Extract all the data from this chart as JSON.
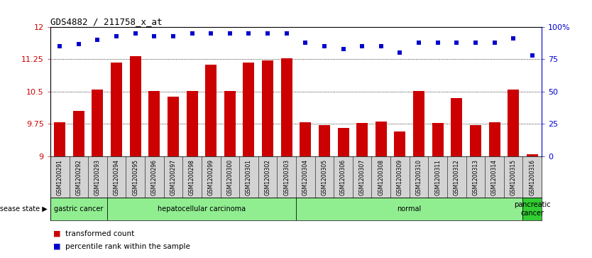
{
  "title": "GDS4882 / 211758_x_at",
  "samples": [
    "GSM1200291",
    "GSM1200292",
    "GSM1200293",
    "GSM1200294",
    "GSM1200295",
    "GSM1200296",
    "GSM1200297",
    "GSM1200298",
    "GSM1200299",
    "GSM1200300",
    "GSM1200301",
    "GSM1200302",
    "GSM1200303",
    "GSM1200304",
    "GSM1200305",
    "GSM1200306",
    "GSM1200307",
    "GSM1200308",
    "GSM1200309",
    "GSM1200310",
    "GSM1200311",
    "GSM1200312",
    "GSM1200313",
    "GSM1200314",
    "GSM1200315",
    "GSM1200316"
  ],
  "bar_values": [
    9.78,
    10.05,
    10.55,
    11.18,
    11.32,
    10.52,
    10.38,
    10.52,
    11.12,
    10.52,
    11.18,
    11.22,
    11.28,
    9.78,
    9.72,
    9.65,
    9.77,
    9.8,
    9.58,
    10.52,
    9.77,
    10.35,
    9.72,
    9.78,
    10.55,
    9.05
  ],
  "percentile_values": [
    85,
    87,
    90,
    93,
    95,
    93,
    93,
    95,
    95,
    95,
    95,
    95,
    95,
    88,
    85,
    83,
    85,
    85,
    80,
    88,
    88,
    88,
    88,
    88,
    91,
    78
  ],
  "ylim_left": [
    9,
    12
  ],
  "ylim_right": [
    0,
    100
  ],
  "yticks_left": [
    9,
    9.75,
    10.5,
    11.25,
    12
  ],
  "ytick_labels_left": [
    "9",
    "9.75",
    "10.5",
    "11.25",
    "12"
  ],
  "yticks_right": [
    0,
    25,
    50,
    75,
    100
  ],
  "ytick_labels_right": [
    "0",
    "25",
    "50",
    "75",
    "100%"
  ],
  "bar_color": "#cc0000",
  "dot_color": "#0000cc",
  "bg_color": "#ffffff",
  "plot_bg_color": "#ffffff",
  "tick_label_area_color": "#d3d3d3",
  "disease_groups": [
    {
      "label": "gastric cancer",
      "start": 0,
      "end": 2,
      "color": "#90ee90"
    },
    {
      "label": "hepatocellular carcinoma",
      "start": 3,
      "end": 12,
      "color": "#90ee90"
    },
    {
      "label": "normal",
      "start": 13,
      "end": 24,
      "color": "#90ee90"
    },
    {
      "label": "pancreatic\ncancer",
      "start": 25,
      "end": 25,
      "color": "#32cd32"
    }
  ],
  "legend_bar_label": "transformed count",
  "legend_dot_label": "percentile rank within the sample",
  "disease_state_label": "disease state"
}
